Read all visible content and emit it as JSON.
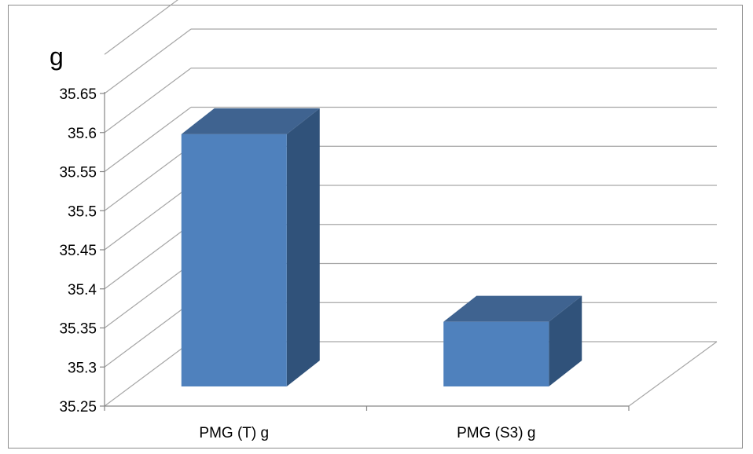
{
  "chart_data": {
    "type": "bar",
    "style": "3d-column",
    "unit_label": "g",
    "categories": [
      "PMG (T) g",
      "PMG (S3) g"
    ],
    "values": [
      35.62,
      35.38
    ],
    "ylim": [
      35.25,
      35.65
    ],
    "ytick_step": 0.05,
    "y_ticks": [
      "35.25",
      "35.3",
      "35.35",
      "35.4",
      "35.45",
      "35.5",
      "35.55",
      "35.6",
      "35.65"
    ],
    "grid": true,
    "legend": "none",
    "colors": {
      "bar_front": "#4f81bd",
      "bar_side": "#30527a",
      "bar_top": "#3f6390",
      "grid": "#a6a6a6",
      "axis": "#868686"
    }
  }
}
